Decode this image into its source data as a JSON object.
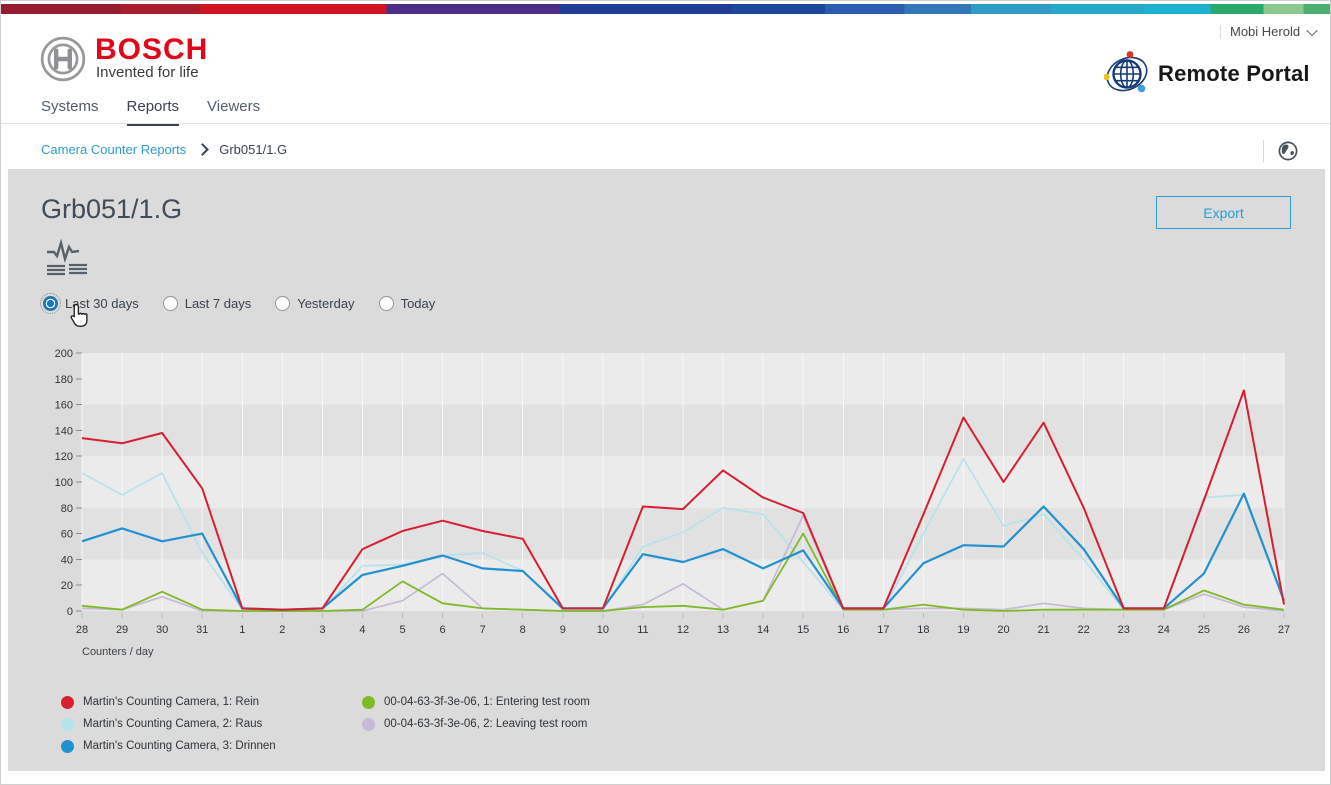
{
  "brand_bar": {
    "stops": [
      {
        "c": "#941c2e",
        "w": 9
      },
      {
        "c": "#aa1f2e",
        "w": 6
      },
      {
        "c": "#d11421",
        "w": 14
      },
      {
        "c": "#4c2e88",
        "w": 13
      },
      {
        "c": "#223e94",
        "w": 13
      },
      {
        "c": "#1d4899",
        "w": 7
      },
      {
        "c": "#2a5dad",
        "w": 6
      },
      {
        "c": "#3277b8",
        "w": 5
      },
      {
        "c": "#2f9ac4",
        "w": 6
      },
      {
        "c": "#27a8c9",
        "w": 7
      },
      {
        "c": "#1fb0d2",
        "w": 5
      },
      {
        "c": "#2aa96b",
        "w": 4
      },
      {
        "c": "#8cc98f",
        "w": 3
      },
      {
        "c": "#4caf6e",
        "w": 2
      }
    ]
  },
  "header": {
    "brand_name": "BOSCH",
    "brand_tagline": "Invented for life",
    "brand_color": "#e10718",
    "user_name": "Mobi Herold",
    "portal_title": "Remote Portal"
  },
  "nav": {
    "tabs": [
      {
        "label": "Systems",
        "active": false
      },
      {
        "label": "Reports",
        "active": true
      },
      {
        "label": "Viewers",
        "active": false
      }
    ]
  },
  "breadcrumb": {
    "link": "Camera Counter Reports",
    "current": "Grb051/1.G"
  },
  "main": {
    "title": "Grb051/1.G",
    "export_label": "Export",
    "accent_color": "#2b9cd8",
    "filters": [
      {
        "label": "Last 30 days",
        "selected": true
      },
      {
        "label": "Last 7 days",
        "selected": false
      },
      {
        "label": "Yesterday",
        "selected": false
      },
      {
        "label": "Today",
        "selected": false
      }
    ]
  },
  "chart_data": {
    "type": "line",
    "title": "",
    "xlabel": "Counters / day",
    "ylabel": "",
    "ylim": [
      0,
      200
    ],
    "ytick_step": 20,
    "grid": "vertical-white-lines with alternating horizontal bands of 40 units",
    "legend_position": "bottom-left, two columns",
    "categories": [
      "28",
      "29",
      "30",
      "31",
      "1",
      "2",
      "3",
      "4",
      "5",
      "6",
      "7",
      "8",
      "9",
      "10",
      "11",
      "12",
      "13",
      "14",
      "15",
      "16",
      "17",
      "18",
      "19",
      "20",
      "21",
      "22",
      "23",
      "24",
      "25",
      "26",
      "27"
    ],
    "series": [
      {
        "name": "Martin's Counting Camera, 1: Rein",
        "color": "#d91e32",
        "values": [
          134,
          130,
          138,
          95,
          2,
          1,
          2,
          48,
          62,
          70,
          62,
          56,
          2,
          2,
          81,
          79,
          109,
          88,
          76,
          2,
          2,
          75,
          150,
          100,
          146,
          80,
          2,
          2,
          86,
          171,
          5
        ]
      },
      {
        "name": "Martin's Counting Camera, 2: Raus",
        "color": "#b5e3ec",
        "values": [
          107,
          90,
          107,
          45,
          1,
          1,
          1,
          35,
          36,
          43,
          45,
          31,
          1,
          1,
          50,
          61,
          80,
          75,
          38,
          1,
          1,
          60,
          118,
          66,
          75,
          40,
          1,
          2,
          88,
          90,
          8
        ]
      },
      {
        "name": "Martin's Counting Camera, 3: Drinnen",
        "color": "#2191d0",
        "values": [
          54,
          64,
          54,
          60,
          2,
          1,
          2,
          28,
          35,
          43,
          33,
          31,
          2,
          2,
          44,
          38,
          48,
          33,
          47,
          2,
          2,
          37,
          51,
          50,
          81,
          48,
          2,
          2,
          29,
          91,
          8
        ]
      },
      {
        "name": "00-04-63-3f-3e-06, 1: Entering test room",
        "color": "#7eba28",
        "values": [
          4,
          1,
          15,
          1,
          0,
          0,
          0,
          1,
          23,
          6,
          2,
          1,
          0,
          0,
          3,
          4,
          1,
          8,
          60,
          1,
          1,
          5,
          1,
          0,
          1,
          1,
          1,
          1,
          16,
          5,
          1
        ]
      },
      {
        "name": "00-04-63-3f-3e-06, 2: Leaving test room",
        "color": "#c6bad5",
        "values": [
          2,
          1,
          11,
          0,
          0,
          0,
          0,
          0,
          8,
          29,
          2,
          1,
          0,
          0,
          5,
          21,
          1,
          8,
          74,
          1,
          1,
          2,
          2,
          1,
          6,
          2,
          1,
          1,
          13,
          3,
          0
        ]
      }
    ]
  }
}
